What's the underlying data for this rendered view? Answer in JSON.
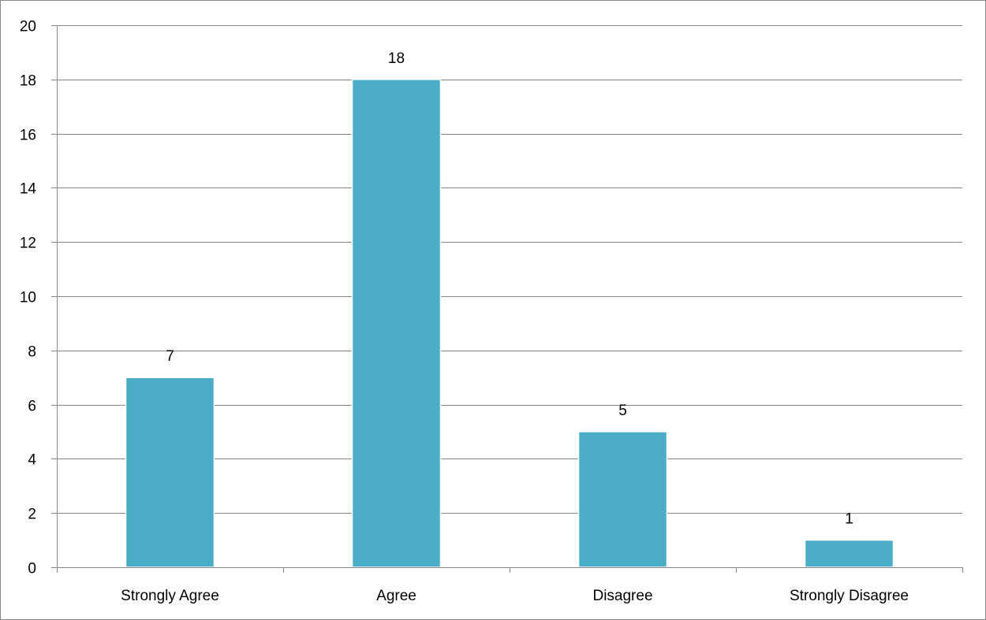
{
  "chart_data": {
    "type": "bar",
    "title": "",
    "xlabel": "",
    "ylabel": "",
    "categories": [
      "Strongly Agree",
      "Agree",
      "Disagree",
      "Strongly Disagree"
    ],
    "values": [
      7,
      18,
      5,
      1
    ],
    "data_labels": [
      "7",
      "18",
      "5",
      "1"
    ],
    "ylim": [
      0,
      20
    ],
    "yticks": [
      0,
      2,
      4,
      6,
      8,
      10,
      12,
      14,
      16,
      18,
      20
    ],
    "ytick_labels": [
      "0",
      "2",
      "4",
      "6",
      "8",
      "10",
      "12",
      "14",
      "16",
      "18",
      "20"
    ],
    "grid": true,
    "legend": "none",
    "bar_color": "#4BACC6",
    "grid_color": "#868686"
  }
}
